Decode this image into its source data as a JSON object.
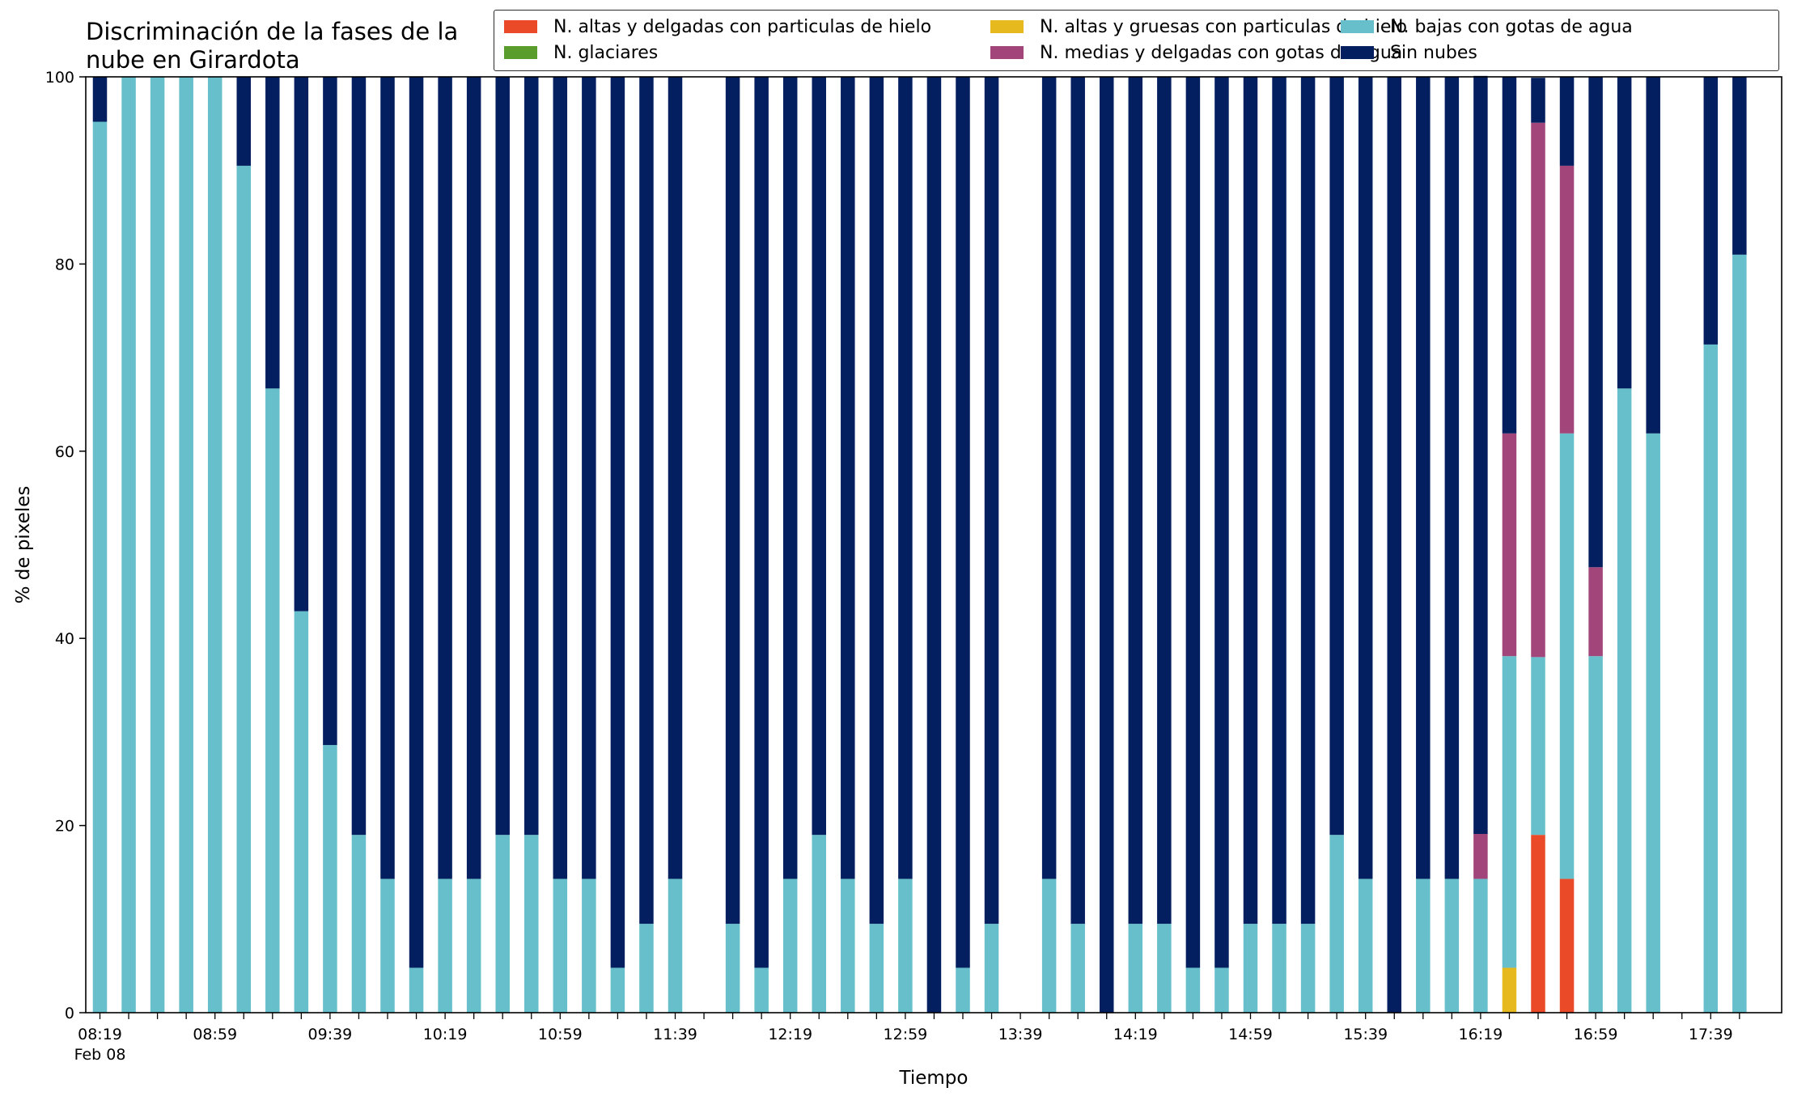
{
  "chart_data": {
    "type": "bar",
    "stacked": true,
    "title": "Discriminación de la fases de la nube en Girardota",
    "xlabel": "Tiempo",
    "ylabel": "% de pixeles",
    "ylim": [
      0,
      100
    ],
    "yticks": [
      "0",
      "20",
      "40",
      "60",
      "80",
      "100"
    ],
    "xticks": [
      {
        "label": "08:19",
        "index": 0,
        "sub": "Feb 08"
      },
      {
        "label": "08:59",
        "index": 4
      },
      {
        "label": "09:39",
        "index": 8
      },
      {
        "label": "10:19",
        "index": 12
      },
      {
        "label": "10:59",
        "index": 16
      },
      {
        "label": "11:39",
        "index": 20
      },
      {
        "label": "12:19",
        "index": 24
      },
      {
        "label": "12:59",
        "index": 28
      },
      {
        "label": "13:39",
        "index": 32
      },
      {
        "label": "14:19",
        "index": 36
      },
      {
        "label": "14:59",
        "index": 40
      },
      {
        "label": "15:39",
        "index": 44
      },
      {
        "label": "16:19",
        "index": 48
      },
      {
        "label": "16:59",
        "index": 52
      },
      {
        "label": "17:39",
        "index": 56
      }
    ],
    "categories": [
      "08:19",
      "08:29",
      "08:39",
      "08:49",
      "08:59",
      "09:09",
      "09:19",
      "09:29",
      "09:39",
      "09:49",
      "09:59",
      "10:09",
      "10:19",
      "10:29",
      "10:39",
      "10:49",
      "10:59",
      "11:09",
      "11:19",
      "11:29",
      "11:39",
      "11:49",
      "11:59",
      "12:09",
      "12:19",
      "12:29",
      "12:39",
      "12:49",
      "12:59",
      "13:09",
      "13:19",
      "13:29",
      "13:39",
      "13:49",
      "13:59",
      "14:09",
      "14:19",
      "14:29",
      "14:39",
      "14:49",
      "14:59",
      "15:09",
      "15:19",
      "15:29",
      "15:39",
      "15:49",
      "15:59",
      "16:09",
      "16:19",
      "16:29",
      "16:39",
      "16:49",
      "16:59",
      "17:09",
      "17:19",
      "17:29",
      "17:39",
      "17:49"
    ],
    "series": [
      {
        "name": "N. altas y delgadas con particulas de hielo",
        "color": "#ea4a28",
        "values": [
          0,
          0,
          0,
          0,
          0,
          0,
          0,
          0,
          0,
          0,
          0,
          0,
          0,
          0,
          0,
          0,
          0,
          0,
          0,
          0,
          0,
          0,
          0,
          0,
          0,
          0,
          0,
          0,
          0,
          0,
          0,
          0,
          0,
          0,
          0,
          0,
          0,
          0,
          0,
          0,
          0,
          0,
          0,
          0,
          0,
          0,
          0,
          0,
          0,
          0,
          19,
          14.3,
          0,
          0,
          0,
          0,
          0,
          0
        ]
      },
      {
        "name": "N. altas y gruesas con particulas de hielo",
        "color": "#e6b91e",
        "values": [
          0,
          0,
          0,
          0,
          0,
          0,
          0,
          0,
          0,
          0,
          0,
          0,
          0,
          0,
          0,
          0,
          0,
          0,
          0,
          0,
          0,
          0,
          0,
          0,
          0,
          0,
          0,
          0,
          0,
          0,
          0,
          0,
          0,
          0,
          0,
          0,
          0,
          0,
          0,
          0,
          0,
          0,
          0,
          0,
          0,
          0,
          0,
          0,
          0,
          4.8,
          0,
          0,
          0,
          0,
          0,
          0,
          0,
          0
        ]
      },
      {
        "name": "N. bajas con gotas de agua",
        "color": "#66bfcb",
        "values": [
          95.2,
          100,
          100,
          100,
          100,
          90.5,
          66.7,
          42.9,
          28.6,
          19,
          14.3,
          4.8,
          14.3,
          14.3,
          19,
          19,
          14.3,
          14.3,
          4.8,
          9.5,
          14.3,
          0,
          9.5,
          4.8,
          14.3,
          19,
          14.3,
          9.5,
          14.3,
          0,
          4.8,
          9.5,
          0,
          14.3,
          9.5,
          0,
          9.5,
          9.5,
          4.8,
          4.8,
          9.5,
          9.5,
          9.5,
          19,
          14.3,
          0,
          14.3,
          14.3,
          14.3,
          33.3,
          19,
          47.6,
          38.1,
          66.7,
          61.9,
          0,
          71.4,
          81
        ]
      },
      {
        "name": "N. glaciares",
        "color": "#5a9d2c",
        "values": [
          0,
          0,
          0,
          0,
          0,
          0,
          0,
          0,
          0,
          0,
          0,
          0,
          0,
          0,
          0,
          0,
          0,
          0,
          0,
          0,
          0,
          0,
          0,
          0,
          0,
          0,
          0,
          0,
          0,
          0,
          0,
          0,
          0,
          0,
          0,
          0,
          0,
          0,
          0,
          0,
          0,
          0,
          0,
          0,
          0,
          0,
          0,
          0,
          0,
          0,
          0,
          0,
          0,
          0,
          0,
          0,
          0,
          0
        ]
      },
      {
        "name": "N. medias y delgadas con gotas de agua",
        "color": "#a2457a",
        "values": [
          0,
          0,
          0,
          0,
          0,
          0,
          0,
          0,
          0,
          0,
          0,
          0,
          0,
          0,
          0,
          0,
          0,
          0,
          0,
          0,
          0,
          0,
          0,
          0,
          0,
          0,
          0,
          0,
          0,
          0,
          0,
          0,
          0,
          0,
          0,
          0,
          0,
          0,
          0,
          0,
          0,
          0,
          0,
          0,
          0,
          0,
          0,
          0,
          4.8,
          23.8,
          57.1,
          28.6,
          9.5,
          0,
          0,
          0,
          0,
          0
        ]
      },
      {
        "name": "Sin nubes",
        "color": "#031f5f",
        "values": [
          4.8,
          0,
          0,
          0,
          0,
          9.5,
          33.3,
          57.1,
          71.4,
          81,
          85.7,
          95.2,
          85.7,
          85.7,
          81,
          81,
          85.7,
          85.7,
          95.2,
          90.5,
          85.7,
          0,
          90.5,
          95.2,
          85.7,
          81,
          85.7,
          90.5,
          85.7,
          100,
          95.2,
          90.5,
          0,
          85.7,
          90.5,
          100,
          90.5,
          90.5,
          95.2,
          95.2,
          90.5,
          90.5,
          90.5,
          81,
          85.7,
          100,
          85.7,
          85.7,
          81,
          38.1,
          4.8,
          9.5,
          52.4,
          33.3,
          38.1,
          0,
          28.6,
          19
        ]
      }
    ],
    "legend_position": "top-right",
    "grid": false
  }
}
